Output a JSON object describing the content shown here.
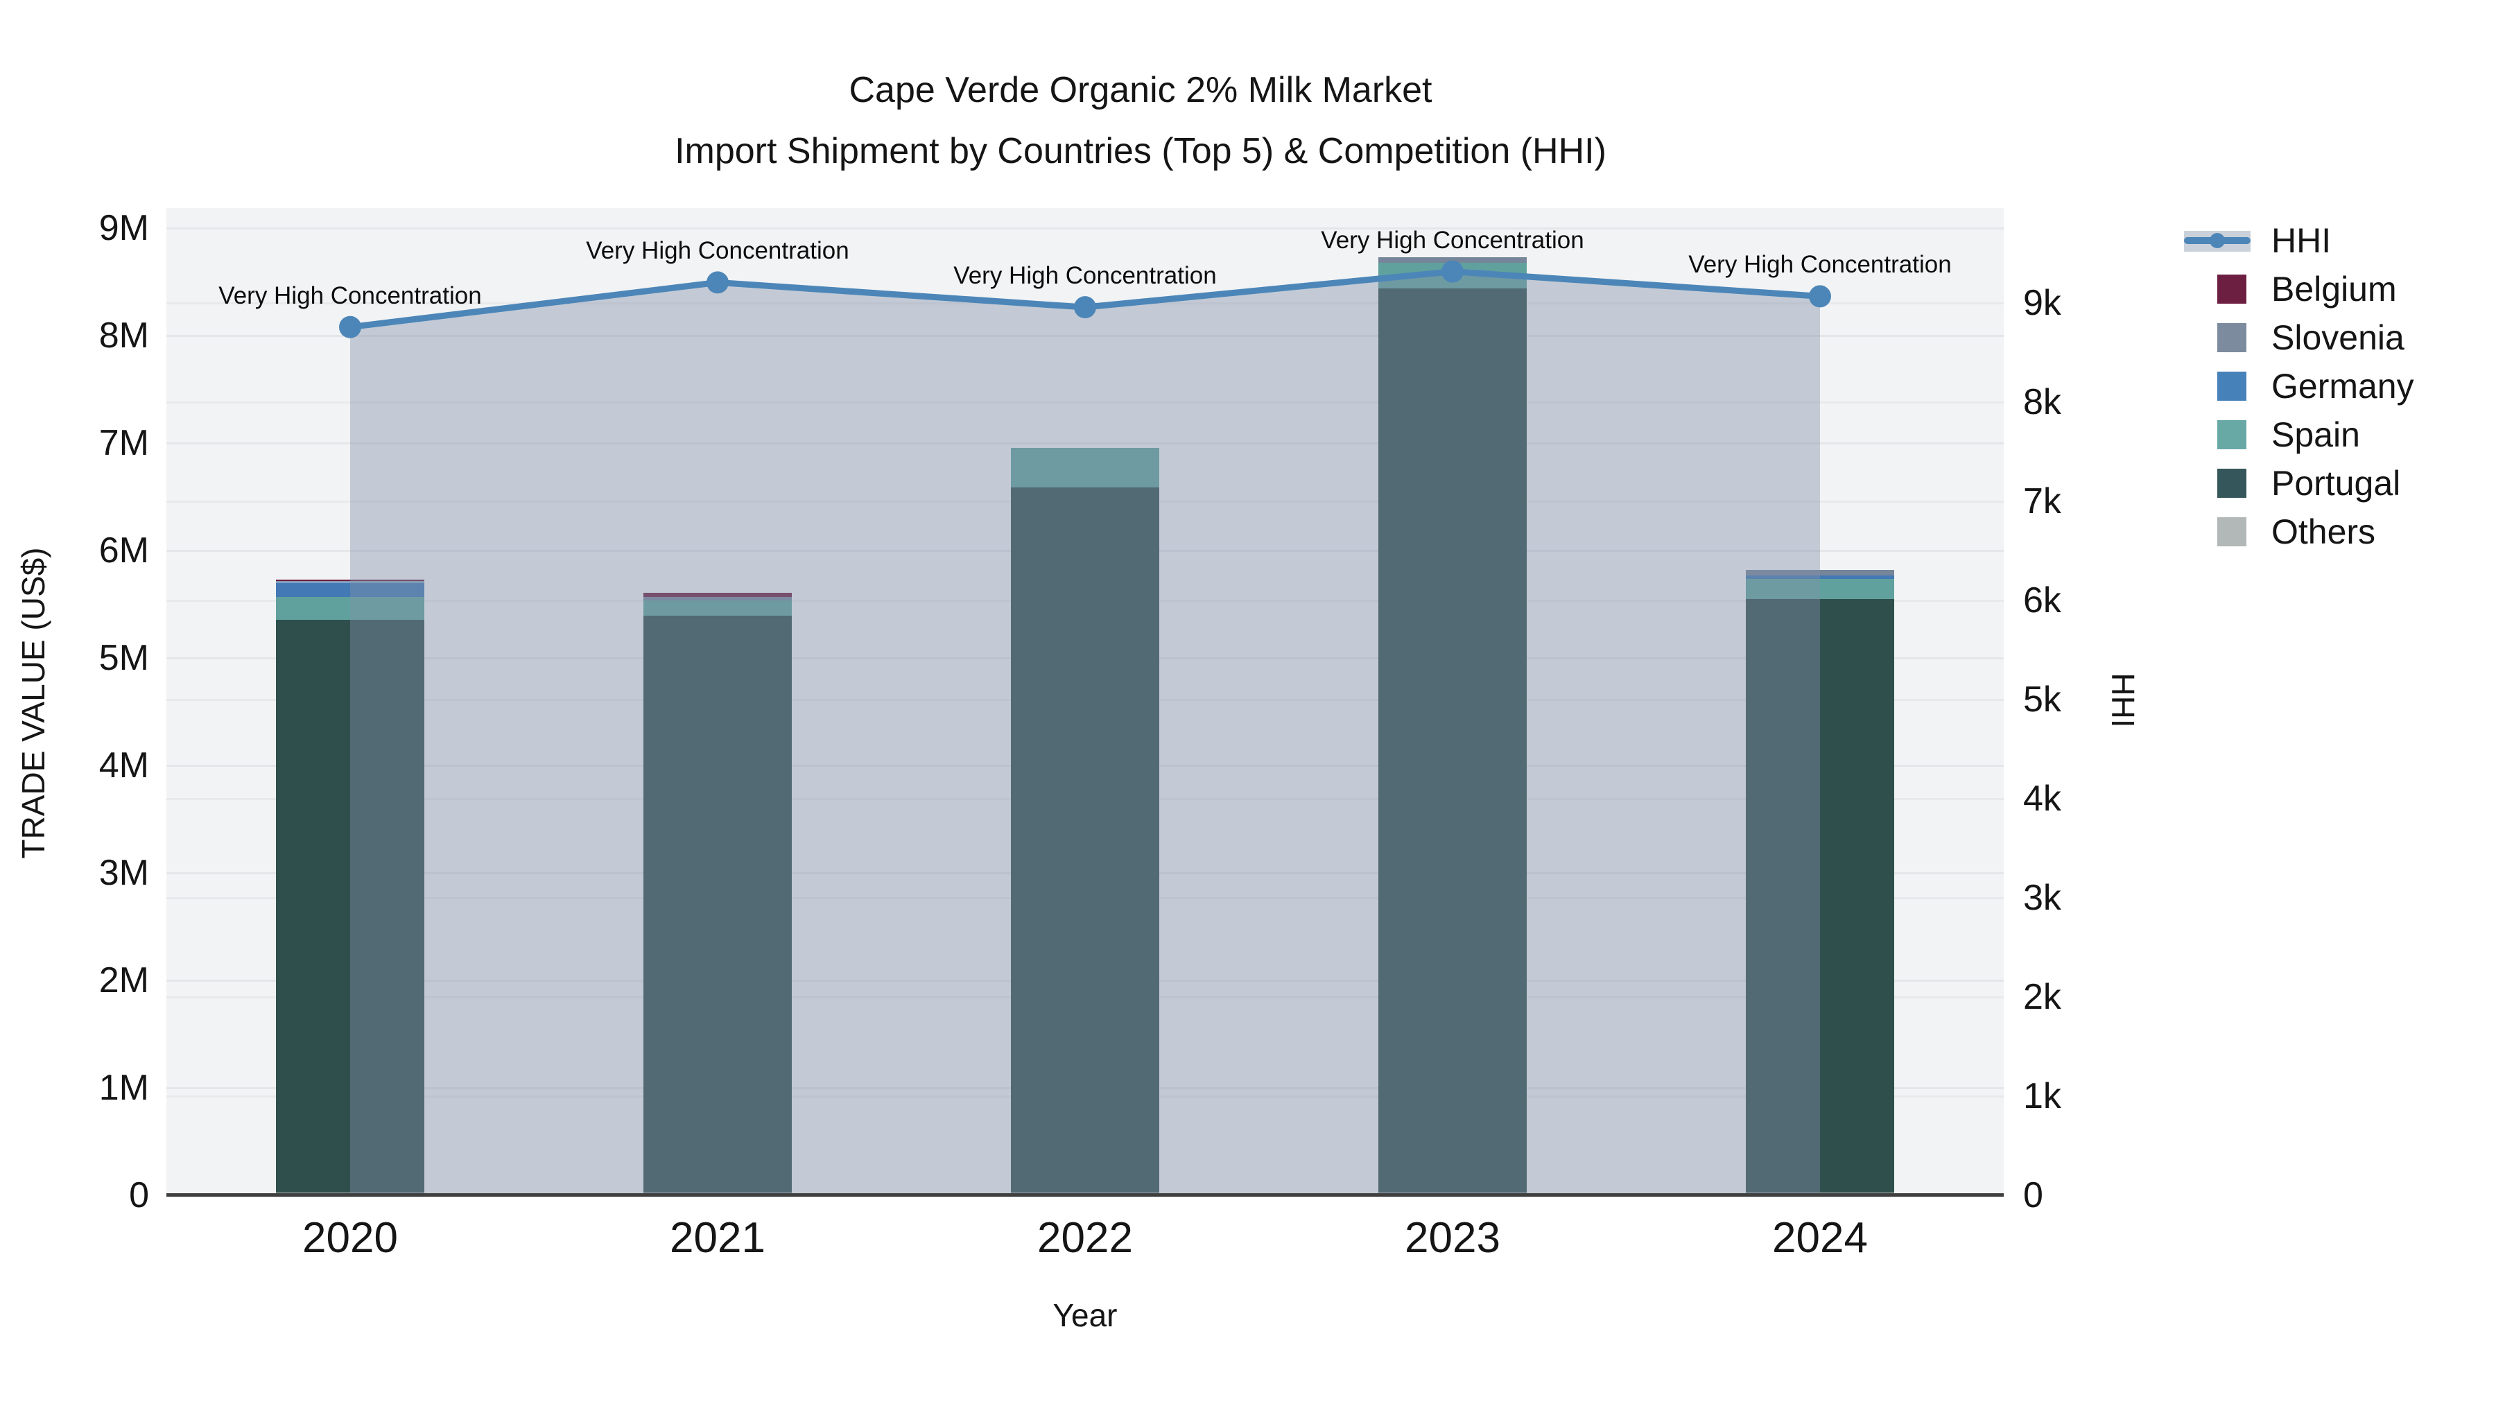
{
  "title": {
    "line1": "Cape Verde Organic 2% Milk Market",
    "line2": "Import Shipment by Countries (Top 5) & Competition (HHI)"
  },
  "axes": {
    "x": {
      "title": "Year",
      "ticks": [
        "2020",
        "2021",
        "2022",
        "2023",
        "2024"
      ]
    },
    "y_left": {
      "title": "TRADE VALUE (US$)",
      "ticks": [
        "0",
        "1M",
        "2M",
        "3M",
        "4M",
        "5M",
        "6M",
        "7M",
        "8M",
        "9M"
      ],
      "range_millions": [
        0,
        9.18
      ]
    },
    "y_right": {
      "title": "HHI",
      "ticks": [
        "0",
        "1k",
        "2k",
        "3k",
        "4k",
        "5k",
        "6k",
        "7k",
        "8k",
        "9k"
      ],
      "range": [
        0,
        9950
      ]
    }
  },
  "chart_data": {
    "type": "bar+line",
    "title": "Cape Verde Organic 2% Milk Market — Import Shipment by Countries (Top 5) & Competition (HHI)",
    "categories": [
      "2020",
      "2021",
      "2022",
      "2023",
      "2024"
    ],
    "bar_units": "millions US$",
    "stack_order_bottom_to_top": [
      "Others",
      "Portugal",
      "Spain",
      "Germany",
      "Slovenia",
      "Belgium"
    ],
    "series": [
      {
        "name": "Others",
        "color": "#a9aeb0",
        "values": [
          0.02,
          0.02,
          0.02,
          0.02,
          0.02
        ]
      },
      {
        "name": "Portugal",
        "color": "#2f4f4c",
        "values": [
          5.33,
          5.37,
          6.56,
          8.41,
          5.52
        ]
      },
      {
        "name": "Spain",
        "color": "#60a19e",
        "values": [
          0.21,
          0.14,
          0.37,
          0.24,
          0.19
        ]
      },
      {
        "name": "Germany",
        "color": "#4379b4",
        "values": [
          0.14,
          0.0,
          0.0,
          0.0,
          0.03
        ]
      },
      {
        "name": "Slovenia",
        "color": "#76859a",
        "values": [
          0.01,
          0.03,
          0.0,
          0.05,
          0.05
        ]
      },
      {
        "name": "Belgium",
        "color": "#6d1f42",
        "values": [
          0.01,
          0.04,
          0.0,
          0.0,
          0.0
        ]
      }
    ],
    "bar_totals_millions": [
      5.72,
      5.6,
      6.95,
      8.72,
      5.81
    ],
    "line": {
      "name": "HHI",
      "color": "#4c86b8",
      "area_color": "rgba(130,146,170,0.42)",
      "values": [
        8750,
        9200,
        8950,
        9310,
        9060
      ]
    },
    "annotation_text": "Very High Concentration",
    "legend": {
      "position": "right",
      "entries": [
        {
          "label": "HHI",
          "type": "line",
          "color": "#4c86b8"
        },
        {
          "label": "Belgium",
          "type": "square",
          "color": "#6d1f42"
        },
        {
          "label": "Slovenia",
          "type": "square",
          "color": "#7c8c9e"
        },
        {
          "label": "Germany",
          "type": "square",
          "color": "#4681b9"
        },
        {
          "label": "Spain",
          "type": "square",
          "color": "#68a8a5"
        },
        {
          "label": "Portugal",
          "type": "square",
          "color": "#35565a"
        },
        {
          "label": "Others",
          "type": "square",
          "color": "#b2b7b8"
        }
      ]
    },
    "grid": true
  }
}
